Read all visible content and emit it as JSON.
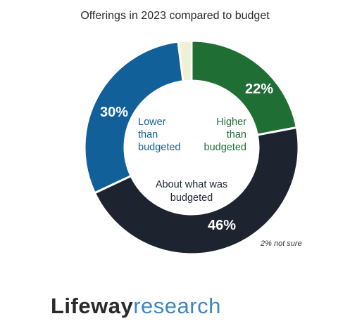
{
  "chart_data": {
    "type": "pie",
    "title": "Offerings in 2023 compared to budget",
    "slices": [
      {
        "label": "Higher than budgeted",
        "label_lines": [
          "Higher",
          "than",
          "budgeted"
        ],
        "value": 22,
        "display": "22%",
        "color": "#1f6e33"
      },
      {
        "label": "About what was budgeted",
        "label_lines": [
          "About what was",
          "budgeted"
        ],
        "value": 46,
        "display": "46%",
        "color": "#1d2430"
      },
      {
        "label": "Lower than budgeted",
        "label_lines": [
          "Lower",
          "than",
          "budgeted"
        ],
        "value": 30,
        "display": "30%",
        "color": "#11609a"
      },
      {
        "label": "Not sure",
        "value": 2,
        "color": "#eef0d8"
      }
    ],
    "note": "2% not sure"
  },
  "brand": {
    "part1": "Lifeway",
    "part2": "research"
  }
}
